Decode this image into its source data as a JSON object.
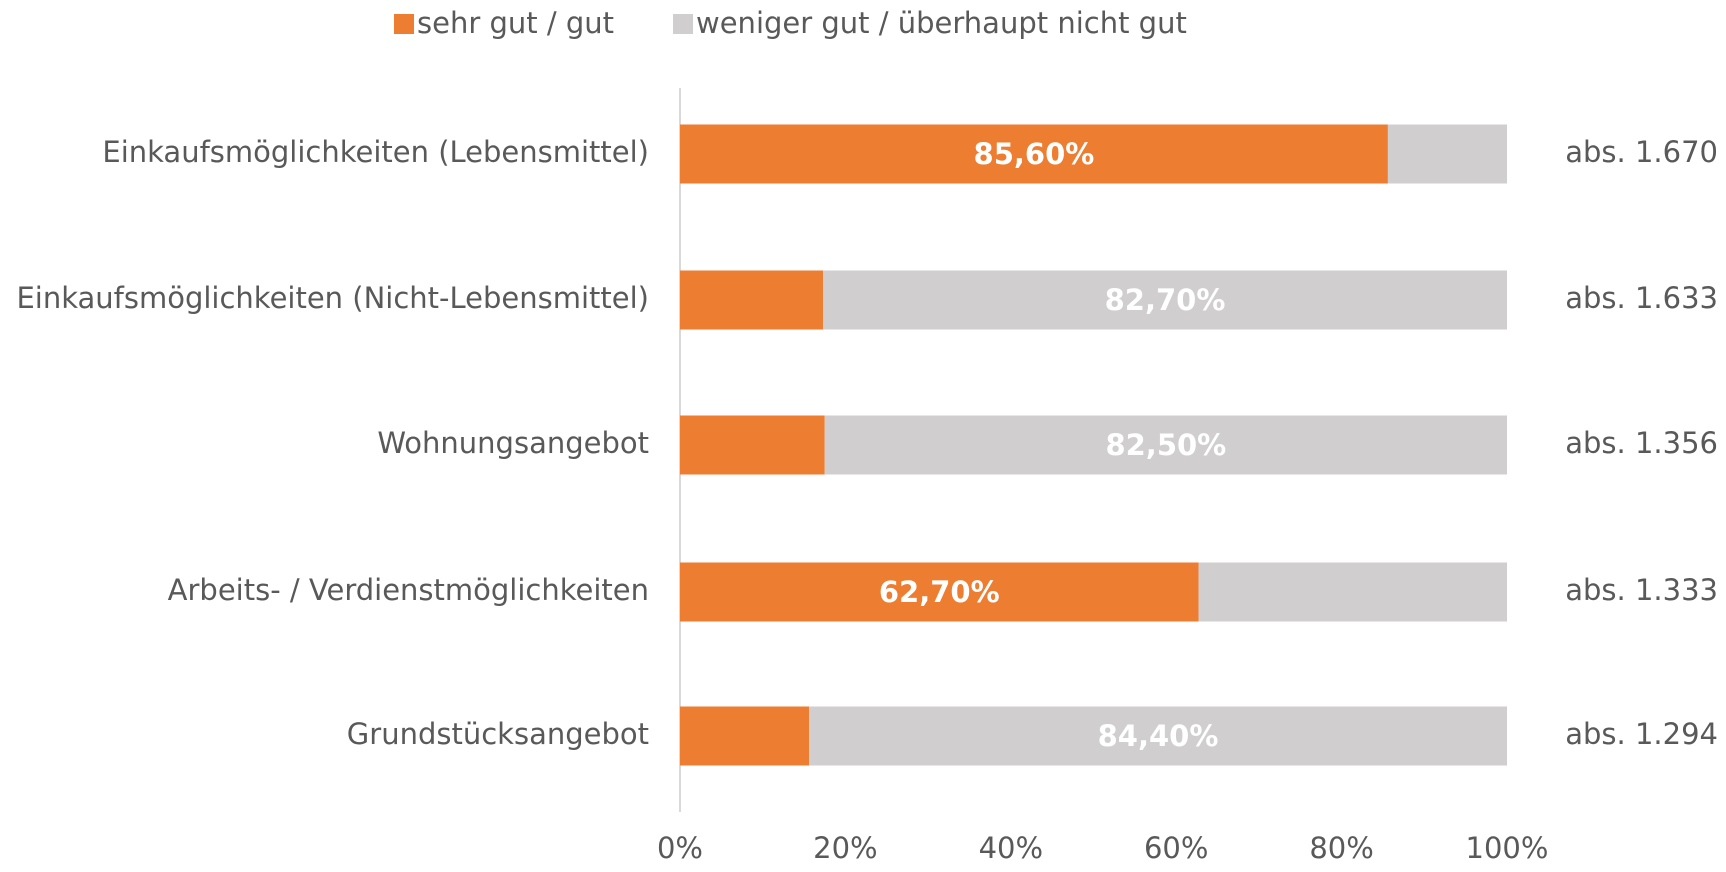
{
  "chart_data": {
    "type": "stacked-bar-horizontal",
    "categories": [
      "Einkaufsmöglichkeiten (Lebensmittel)",
      "Einkaufsmöglichkeiten (Nicht-Lebensmittel)",
      "Wohnungsangebot",
      "Arbeits- / Verdienstmöglichkeiten",
      "Grundstücksangebot"
    ],
    "series": [
      {
        "name": "sehr gut / gut",
        "color": "#ED7D31",
        "values": [
          85.6,
          17.3,
          17.5,
          62.7,
          15.6
        ],
        "value_labels": [
          "85,60%",
          null,
          null,
          "62,70%",
          null
        ]
      },
      {
        "name": "weniger gut / überhaupt nicht gut",
        "color": "#D0CECE",
        "values": [
          14.4,
          82.7,
          82.5,
          37.3,
          84.4
        ],
        "value_labels": [
          null,
          "82,70%",
          "82,50%",
          null,
          "84,40%"
        ]
      }
    ],
    "annotations": [
      "abs. 1.670",
      "abs. 1.633",
      "abs. 1.356",
      "abs. 1.333",
      "abs. 1.294"
    ],
    "xlim": [
      0,
      100
    ],
    "xticks": [
      {
        "value": 0,
        "label": "0%"
      },
      {
        "value": 20,
        "label": "20%"
      },
      {
        "value": 40,
        "label": "40%"
      },
      {
        "value": 60,
        "label": "60%"
      },
      {
        "value": 80,
        "label": "80%"
      },
      {
        "value": 100,
        "label": "100%"
      }
    ],
    "legend": "top",
    "grid": false
  }
}
